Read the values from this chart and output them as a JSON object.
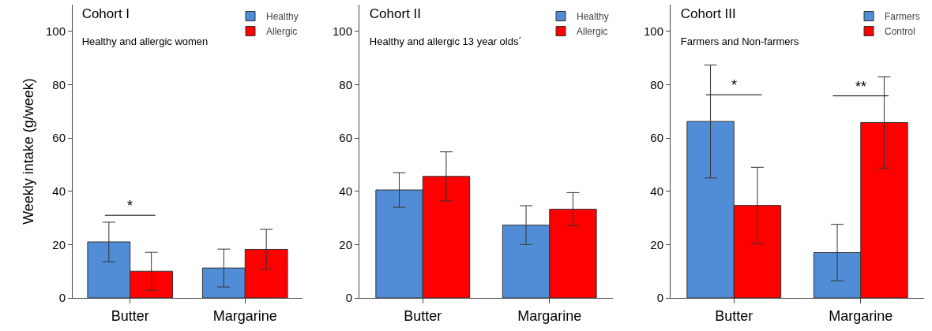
{
  "chart_data": [
    {
      "type": "bar",
      "title": "Cohort I",
      "subtitle": "Healthy and allergic women",
      "ylabel": "Weekly intake (g/week)",
      "categories": [
        "Butter",
        "Margarine"
      ],
      "ylim": [
        0,
        110
      ],
      "yticks": [
        0,
        20,
        40,
        60,
        80,
        100
      ],
      "grid": false,
      "legend": "top right",
      "series": [
        {
          "name": "Healthy",
          "color": "#518dd6",
          "values": [
            21,
            11.2
          ],
          "errors": [
            7.4,
            7.1
          ]
        },
        {
          "name": "Allergic",
          "color": "#ff0000",
          "values": [
            10,
            18.2
          ],
          "errors": [
            7.1,
            7.5
          ]
        }
      ],
      "annotations": [
        "*"
      ]
    },
    {
      "type": "bar",
      "title": "Cohort II",
      "subtitle": "Healthy and allergic 13 year olds´",
      "categories": [
        "Butter",
        "Margarine"
      ],
      "ylim": [
        0,
        110
      ],
      "yticks": [
        0,
        20,
        40,
        60,
        80,
        100
      ],
      "grid": false,
      "legend": "top right",
      "series": [
        {
          "name": "Healthy",
          "color": "#518dd6",
          "values": [
            40.5,
            27.3
          ],
          "errors": [
            6.5,
            7.3
          ]
        },
        {
          "name": "Allergic",
          "color": "#ff0000",
          "values": [
            45.6,
            33.3
          ],
          "errors": [
            9.2,
            6.2
          ]
        }
      ]
    },
    {
      "type": "bar",
      "title": "Cohort III",
      "subtitle": "Farmers and Non-farmers",
      "categories": [
        "Butter",
        "Margarine"
      ],
      "ylim": [
        0,
        110
      ],
      "yticks": [
        0,
        20,
        40,
        60,
        80,
        100
      ],
      "grid": false,
      "legend": "top right",
      "series": [
        {
          "name": "Farmers",
          "color": "#518dd6",
          "values": [
            66.2,
            17
          ],
          "errors": [
            21.2,
            10.6
          ]
        },
        {
          "name": "Control",
          "color": "#ff0000",
          "values": [
            34.7,
            65.8
          ],
          "errors": [
            14.3,
            17.1
          ]
        }
      ],
      "annotations": [
        "*",
        "**"
      ]
    }
  ]
}
